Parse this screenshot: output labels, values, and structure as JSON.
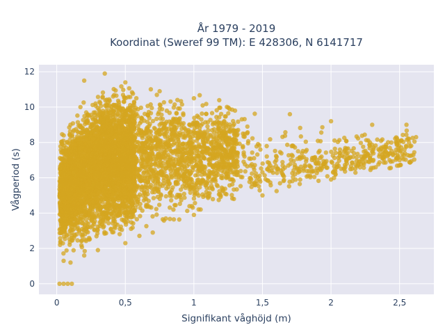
{
  "chart_data": {
    "type": "scatter",
    "title_line1": "År 1979 - 2019",
    "title_line2": "Koordinat (Sweref 99 TM): E 428306, N 6141717",
    "xlabel": "Signifikant våghöjd (m)",
    "ylabel": "Vågperiod (s)",
    "xlim": [
      -0.13,
      2.75
    ],
    "ylim": [
      -0.6,
      12.4
    ],
    "x_ticks": [
      0,
      0.5,
      1,
      1.5,
      2,
      2.5
    ],
    "x_tick_labels": [
      "0",
      "0,5",
      "1",
      "1,5",
      "2",
      "2,5"
    ],
    "y_ticks": [
      0,
      2,
      4,
      6,
      8,
      10,
      12
    ],
    "y_tick_labels": [
      "0",
      "2",
      "4",
      "6",
      "8",
      "10",
      "12"
    ],
    "grid": true,
    "marker_color": "#d4a520",
    "plot_background": "#e5e5f0",
    "point_count": 6000,
    "sample_points": [
      [
        0.02,
        0.0
      ],
      [
        0.05,
        0.0
      ],
      [
        0.08,
        0.0
      ],
      [
        0.11,
        0.0
      ],
      [
        0.05,
        1.3
      ],
      [
        0.1,
        1.2
      ],
      [
        0.2,
        1.6
      ],
      [
        0.3,
        1.9
      ],
      [
        0.5,
        2.3
      ],
      [
        0.7,
        2.9
      ],
      [
        1.0,
        3.9
      ],
      [
        1.5,
        5.0
      ],
      [
        2.0,
        5.9
      ],
      [
        2.5,
        7.0
      ],
      [
        0.1,
        9.0
      ],
      [
        0.2,
        11.5
      ],
      [
        0.35,
        11.9
      ],
      [
        0.5,
        11.4
      ],
      [
        0.75,
        10.9
      ],
      [
        1.0,
        10.5
      ],
      [
        1.3,
        9.8
      ],
      [
        1.7,
        9.6
      ],
      [
        2.0,
        9.2
      ],
      [
        2.3,
        9.0
      ],
      [
        2.55,
        9.0
      ],
      [
        2.62,
        8.3
      ],
      [
        0.3,
        6.5
      ],
      [
        0.6,
        6.0
      ],
      [
        1.2,
        6.0
      ],
      [
        1.8,
        6.4
      ],
      [
        2.2,
        6.8
      ]
    ]
  }
}
